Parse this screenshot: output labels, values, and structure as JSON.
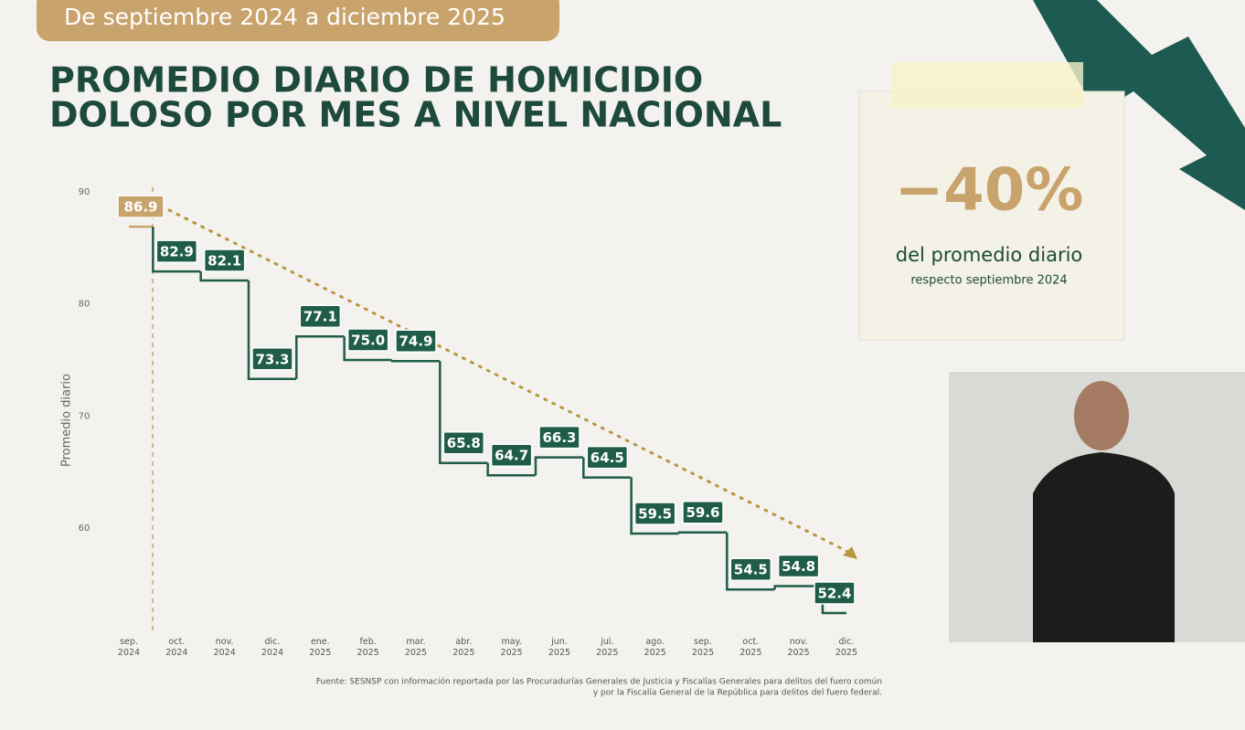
{
  "chart_data": {
    "type": "step",
    "subtitle": "De septiembre 2024 a diciembre 2025",
    "title": [
      "PROMEDIO DIARIO DE HOMICIDIO",
      "DOLOSO POR MES A NIVEL NACIONAL"
    ],
    "y_label": "Promedio diario",
    "categories": [
      "sep. 2024",
      "oct. 2024",
      "nov. 2024",
      "dic. 2024",
      "ene. 2025",
      "feb. 2025",
      "mar. 2025",
      "abr. 2025",
      "may. 2025",
      "jun. 2025",
      "jul. 2025",
      "ago. 2025",
      "sep. 2025",
      "oct. 2025",
      "nov. 2025",
      "dic. 2025"
    ],
    "values": [
      86.9,
      82.9,
      82.1,
      73.3,
      77.1,
      75.0,
      74.9,
      65.8,
      64.7,
      66.3,
      64.5,
      59.5,
      59.6,
      54.5,
      54.8,
      52.4
    ],
    "value_labels": [
      "86.9",
      "82.9",
      "82.1",
      "73.3",
      "77.1",
      "75.0",
      "74.9",
      "65.8",
      "64.7",
      "66.3",
      "64.5",
      "59.5",
      "59.6",
      "54.5",
      "54.8",
      "52.4"
    ],
    "color": "#1f5c49",
    "first_color": "#c9a36c",
    "ylim": [
      51.5,
      90.5
    ],
    "yticks": [
      60,
      70,
      80,
      90
    ],
    "annotations": [
      "−40%",
      "del promedio diario",
      "respecto septiembre 2024"
    ],
    "source": [
      "Fuente: SESNSP con información reportada por las Procuradurías Generales de Justicia y Fiscalías Generales para delitos del fuero común",
      "y por la Fiscalía General de la República para delitos del fuero federal."
    ]
  }
}
